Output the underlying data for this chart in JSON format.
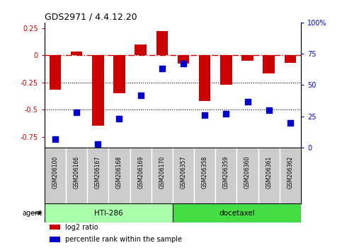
{
  "title": "GDS2971 / 4.4.12.20",
  "samples": [
    "GSM206100",
    "GSM206166",
    "GSM206167",
    "GSM206168",
    "GSM206169",
    "GSM206170",
    "GSM206357",
    "GSM206358",
    "GSM206359",
    "GSM206360",
    "GSM206361",
    "GSM206362"
  ],
  "log2_ratio": [
    -0.32,
    0.03,
    -0.65,
    -0.35,
    0.1,
    0.22,
    -0.08,
    -0.42,
    -0.27,
    -0.05,
    -0.17,
    -0.07
  ],
  "percentile_rank": [
    7,
    28,
    3,
    23,
    42,
    63,
    67,
    26,
    27,
    37,
    30,
    20
  ],
  "ylim_left": [
    -0.85,
    0.3
  ],
  "ylim_right": [
    0,
    100
  ],
  "yticks_left": [
    -0.75,
    -0.5,
    -0.25,
    0,
    0.25
  ],
  "yticks_right": [
    0,
    25,
    50,
    75,
    100
  ],
  "ytick_labels_left": [
    "-0.75",
    "-0.5",
    "-0.25",
    "0",
    "0.25"
  ],
  "ytick_labels_right": [
    "0",
    "25",
    "50",
    "75",
    "100%"
  ],
  "hlines": [
    -0.25,
    -0.5
  ],
  "hline_zero": 0,
  "bar_color": "#cc0000",
  "dot_color": "#0000cc",
  "hline_zero_color": "#cc0000",
  "hline_dot_color": "#000000",
  "agent_groups": [
    {
      "label": "HTI-286",
      "start": 0,
      "end": 6,
      "color": "#aaffaa"
    },
    {
      "label": "docetaxel",
      "start": 6,
      "end": 12,
      "color": "#44dd44"
    }
  ],
  "agent_label": "agent",
  "legend_items": [
    {
      "label": "log2 ratio",
      "color": "#cc0000"
    },
    {
      "label": "percentile rank within the sample",
      "color": "#0000cc"
    }
  ],
  "background_color": "#ffffff",
  "label_bg_color": "#cccccc",
  "bar_width": 0.55,
  "dot_size": 28
}
